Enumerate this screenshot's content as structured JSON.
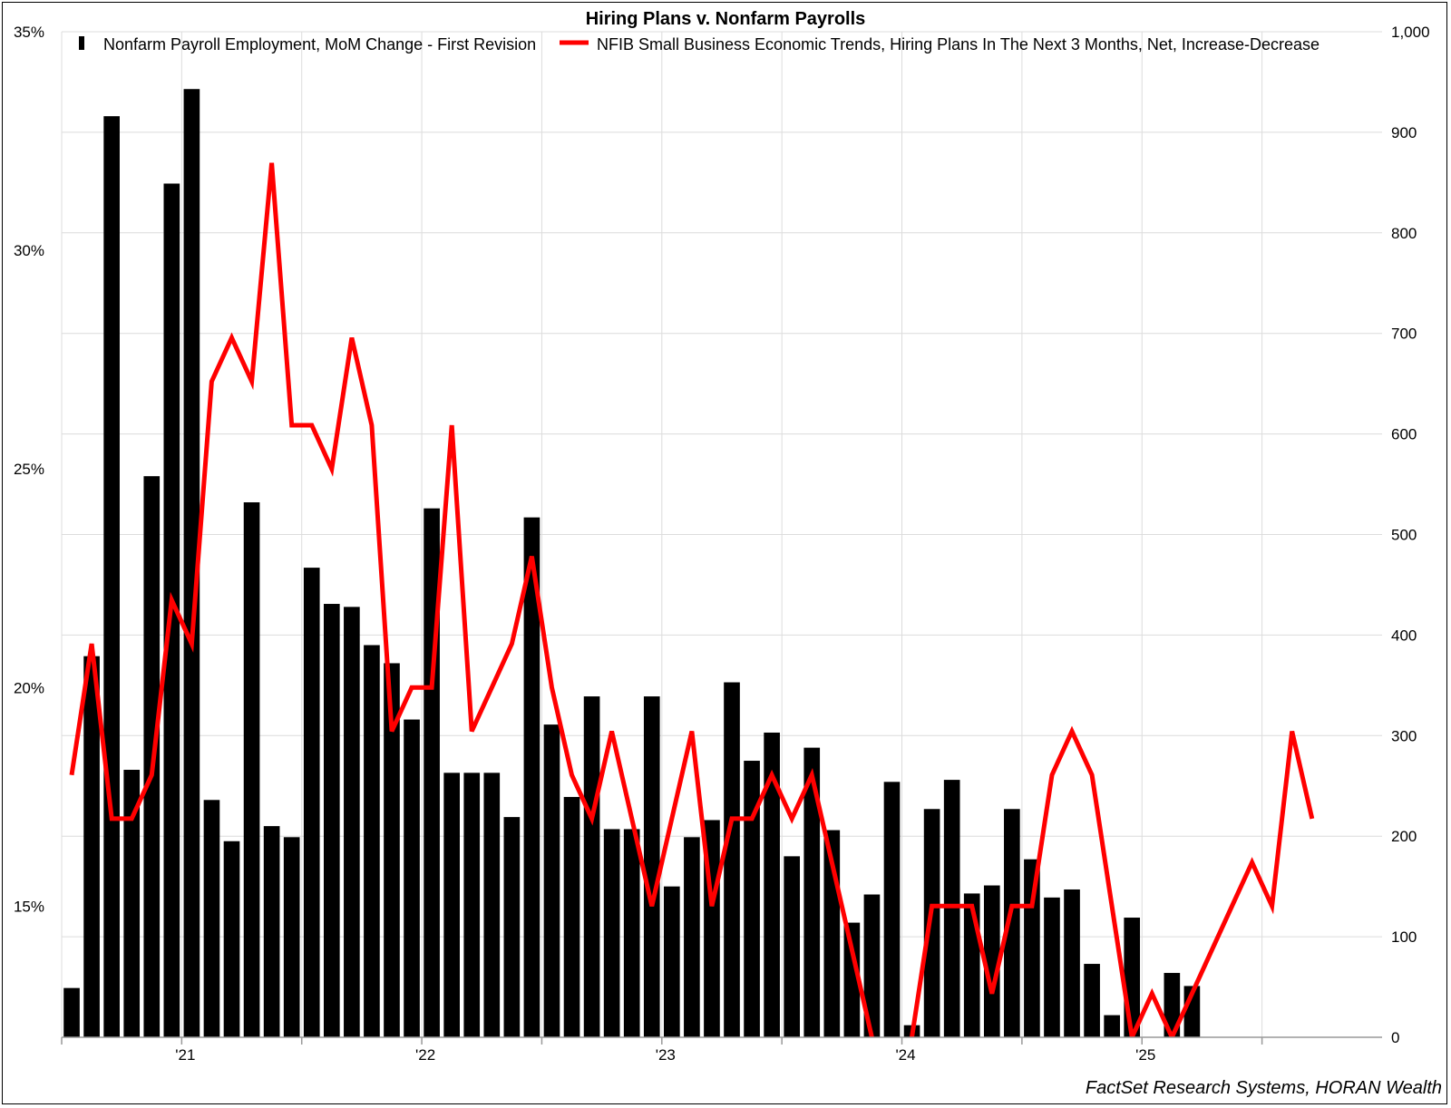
{
  "chart_data": {
    "type": "bar",
    "title": "Hiring Plans v. Nonfarm Payrolls",
    "source": "FactSet Research Systems, HORAN Wealth",
    "left_axis": {
      "min": 12,
      "max": 35,
      "ticks": [
        15,
        20,
        25,
        30,
        35
      ],
      "format": "percent"
    },
    "right_axis": {
      "min": 0,
      "max": 1000,
      "ticks": [
        0,
        100,
        200,
        300,
        400,
        500,
        600,
        700,
        800,
        900,
        1000
      ]
    },
    "x_labels": [
      {
        "label": "'21",
        "month_index": 5.5
      },
      {
        "label": "'22",
        "month_index": 17.5
      },
      {
        "label": "'23",
        "month_index": 29.5
      },
      {
        "label": "'24",
        "month_index": 41.5
      },
      {
        "label": "'25",
        "month_index": 53.5
      }
    ],
    "x_gridlines_month_index": [
      -0.5,
      5.5,
      11.5,
      17.5,
      23.5,
      29.5,
      35.5,
      41.5,
      47.5,
      53.5,
      59.5
    ],
    "n_months": 66,
    "grid": true,
    "legend_position": "top",
    "series": [
      {
        "name": "Nonfarm Payroll Employment, MoM Change - First Revision",
        "type": "bar",
        "axis": "right",
        "color": "#000000",
        "start_index": 0,
        "values": [
          49,
          379,
          916,
          266,
          558,
          849,
          943,
          236,
          195,
          532,
          210,
          199,
          467,
          431,
          428,
          390,
          372,
          316,
          526,
          263,
          263,
          263,
          219,
          517,
          311,
          239,
          339,
          207,
          207,
          339,
          150,
          199,
          216,
          353,
          275,
          303,
          180,
          288,
          206,
          114,
          142,
          254,
          12,
          227,
          256,
          143,
          151,
          227,
          177,
          139,
          147,
          73,
          22,
          119,
          null,
          64,
          51
        ]
      },
      {
        "name": "NFIB Small Business Economic Trends, Hiring Plans In The Next 3 Months, Net, Increase-Decrease",
        "type": "line",
        "axis": "left",
        "color": "#ff0000",
        "start_index": 0,
        "values": [
          18,
          21,
          17,
          17,
          18,
          22,
          21,
          27,
          28,
          27,
          32,
          26,
          26,
          25,
          28,
          26,
          19,
          20,
          20,
          26,
          19,
          20,
          21,
          23,
          20,
          18,
          17,
          19,
          17,
          15,
          17,
          19,
          15,
          17,
          17,
          18,
          17,
          18,
          16,
          14,
          12,
          10,
          12,
          15,
          15,
          15,
          13,
          15,
          15,
          18,
          19,
          18,
          15,
          12,
          13,
          12,
          13,
          14,
          15,
          16,
          15,
          19,
          17
        ]
      }
    ]
  }
}
